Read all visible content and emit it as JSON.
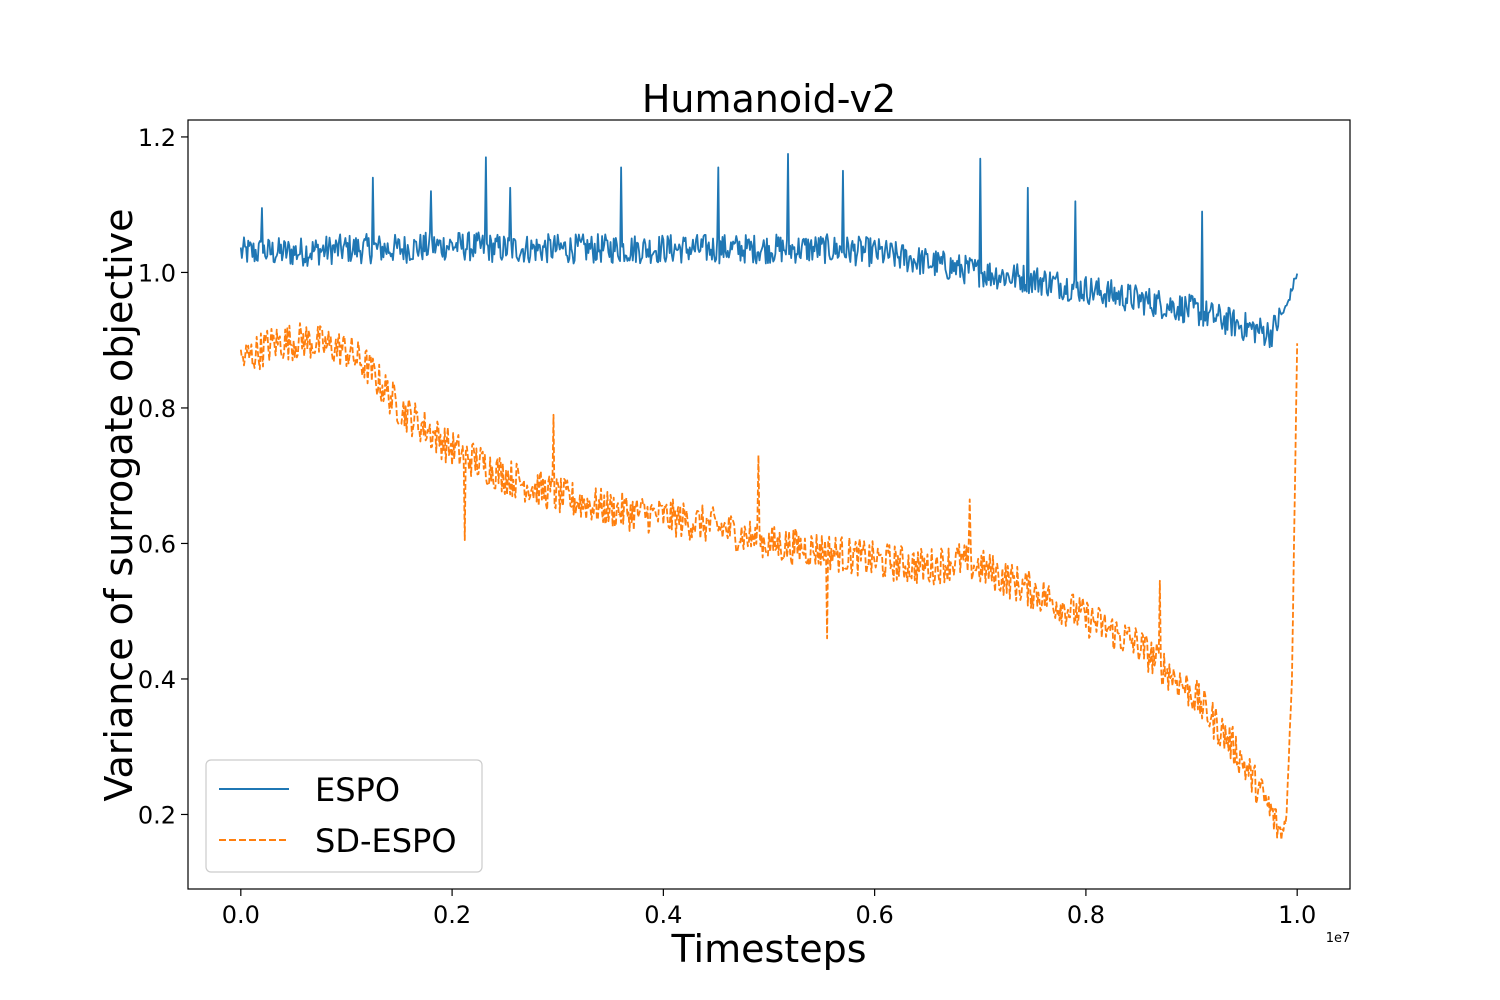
{
  "chart_data": {
    "type": "line",
    "title": "Humanoid-v2",
    "xlabel": "Timesteps",
    "ylabel": "Variance of surrogate objective",
    "x_offset_label": "1e7",
    "x_scale": 10000000,
    "xlim": [
      -0.05,
      1.05
    ],
    "ylim": [
      0.09,
      1.225
    ],
    "x_ticks": [
      0.0,
      0.2,
      0.4,
      0.6,
      0.8,
      1.0
    ],
    "x_tick_labels": [
      "0.0",
      "0.2",
      "0.4",
      "0.6",
      "0.8",
      "1.0"
    ],
    "y_ticks": [
      0.2,
      0.4,
      0.6,
      0.8,
      1.0,
      1.2
    ],
    "y_tick_labels": [
      "0.2",
      "0.4",
      "0.6",
      "0.8",
      "1.0",
      "1.2"
    ],
    "grid": false,
    "legend_position": "lower-left",
    "series": [
      {
        "name": "ESPO",
        "color": "#1f77b4",
        "style": "solid",
        "x": [
          0.0,
          0.05,
          0.1,
          0.15,
          0.2,
          0.25,
          0.3,
          0.35,
          0.4,
          0.45,
          0.5,
          0.55,
          0.6,
          0.65,
          0.7,
          0.75,
          0.8,
          0.85,
          0.9,
          0.95,
          0.975,
          0.99,
          1.0
        ],
        "values": [
          1.03,
          1.03,
          1.035,
          1.035,
          1.04,
          1.035,
          1.035,
          1.035,
          1.035,
          1.035,
          1.035,
          1.035,
          1.03,
          1.015,
          1.0,
          0.99,
          0.975,
          0.96,
          0.945,
          0.92,
          0.91,
          0.95,
          1.0
        ],
        "noise": 0.022,
        "spikes": [
          {
            "x": 0.02,
            "y": 1.095
          },
          {
            "x": 0.125,
            "y": 1.14
          },
          {
            "x": 0.18,
            "y": 1.12
          },
          {
            "x": 0.232,
            "y": 1.17
          },
          {
            "x": 0.255,
            "y": 1.125
          },
          {
            "x": 0.36,
            "y": 1.155
          },
          {
            "x": 0.452,
            "y": 1.155
          },
          {
            "x": 0.518,
            "y": 1.175
          },
          {
            "x": 0.57,
            "y": 1.15
          },
          {
            "x": 0.7,
            "y": 1.168
          },
          {
            "x": 0.745,
            "y": 1.125
          },
          {
            "x": 0.79,
            "y": 1.105
          },
          {
            "x": 0.91,
            "y": 1.09
          }
        ]
      },
      {
        "name": "SD-ESPO",
        "color": "#ff7f0e",
        "style": "dashed",
        "x": [
          0.0,
          0.03,
          0.06,
          0.1,
          0.12,
          0.15,
          0.2,
          0.25,
          0.3,
          0.35,
          0.4,
          0.45,
          0.5,
          0.55,
          0.6,
          0.65,
          0.68,
          0.7,
          0.75,
          0.8,
          0.85,
          0.9,
          0.94,
          0.97,
          0.985,
          0.99,
          0.995,
          1.0
        ],
        "values": [
          0.87,
          0.895,
          0.9,
          0.885,
          0.86,
          0.8,
          0.74,
          0.7,
          0.67,
          0.65,
          0.64,
          0.625,
          0.6,
          0.59,
          0.575,
          0.565,
          0.575,
          0.565,
          0.53,
          0.49,
          0.45,
          0.38,
          0.3,
          0.22,
          0.17,
          0.2,
          0.4,
          0.9
        ],
        "noise": 0.028,
        "spikes": [
          {
            "x": 0.212,
            "y": 0.605
          },
          {
            "x": 0.296,
            "y": 0.79
          },
          {
            "x": 0.49,
            "y": 0.73
          },
          {
            "x": 0.555,
            "y": 0.46
          },
          {
            "x": 0.69,
            "y": 0.665
          },
          {
            "x": 0.87,
            "y": 0.545
          }
        ]
      }
    ]
  }
}
